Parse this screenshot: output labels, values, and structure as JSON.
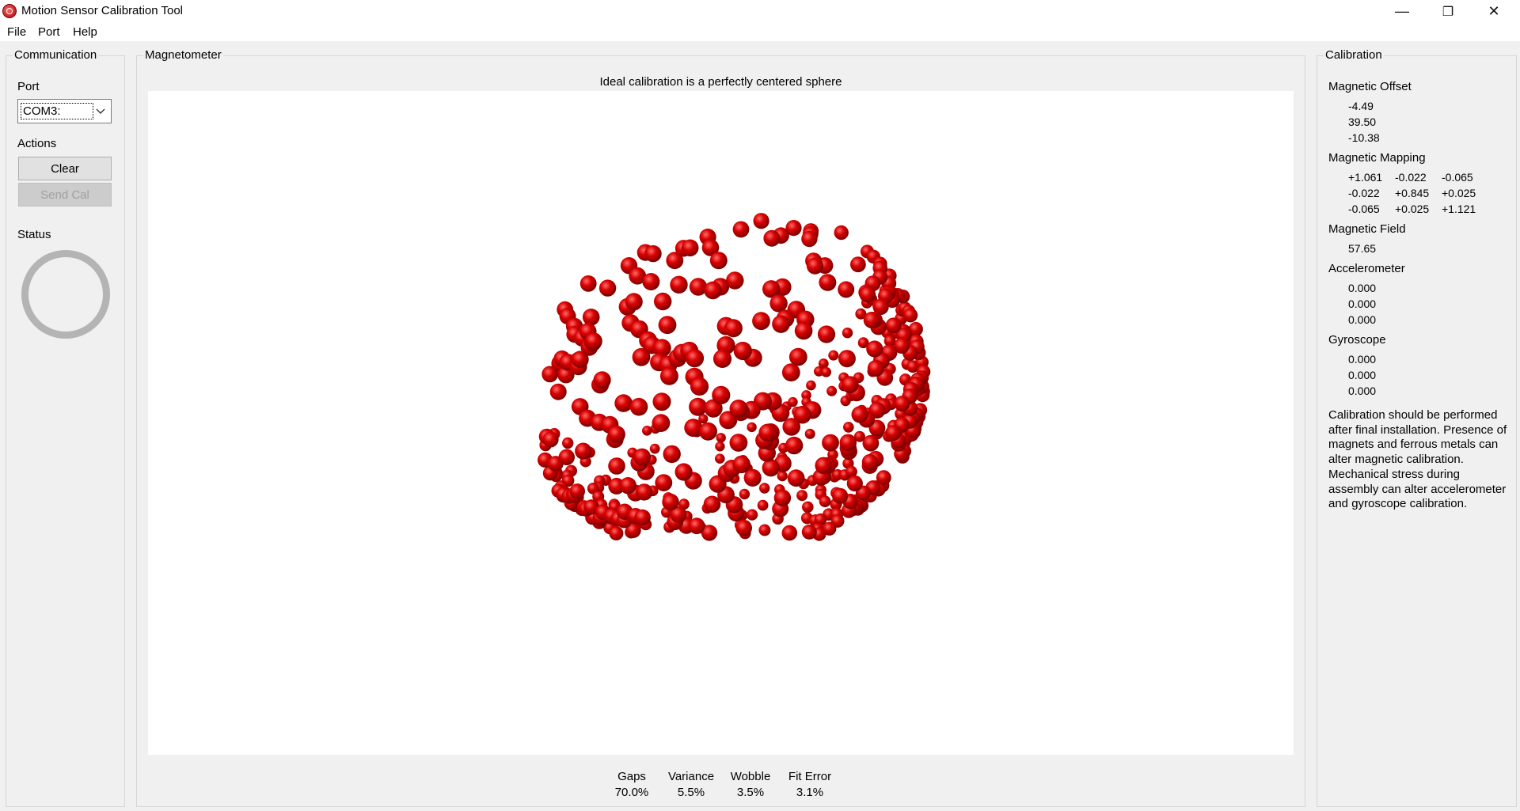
{
  "window": {
    "title": "Motion Sensor Calibration Tool"
  },
  "titlebar_buttons": {
    "minimize": "—",
    "restore": "❐",
    "close": "✕"
  },
  "menu": [
    "File",
    "Port",
    "Help"
  ],
  "communication": {
    "title": "Communication",
    "port_label": "Port",
    "port_value": "COM3:",
    "actions_label": "Actions",
    "clear_label": "Clear",
    "send_cal_label": "Send Cal",
    "status_label": "Status"
  },
  "magnetometer": {
    "title": "Magnetometer",
    "subtitle": "Ideal calibration is a perfectly centered sphere",
    "stats": [
      {
        "name": "Gaps",
        "value": "70.0%"
      },
      {
        "name": "Variance",
        "value": "5.5%"
      },
      {
        "name": "Wobble",
        "value": "3.5%"
      },
      {
        "name": "Fit Error",
        "value": "3.1%"
      }
    ],
    "point_color": "#cc0000"
  },
  "calibration": {
    "title": "Calibration",
    "offset_label": "Magnetic Offset",
    "offset": [
      "-4.49",
      "39.50",
      "-10.38"
    ],
    "mapping_label": "Magnetic Mapping",
    "mapping": [
      [
        "+1.061",
        "-0.022",
        "-0.065"
      ],
      [
        "-0.022",
        "+0.845",
        "+0.025"
      ],
      [
        "-0.065",
        "+0.025",
        "+1.121"
      ]
    ],
    "field_label": "Magnetic Field",
    "field": "57.65",
    "accel_label": "Accelerometer",
    "accel": [
      "0.000",
      "0.000",
      "0.000"
    ],
    "gyro_label": "Gyroscope",
    "gyro": [
      "0.000",
      "0.000",
      "0.000"
    ],
    "note": "Calibration should be performed after final installation.  Presence of magnets and ferrous metals can alter magnetic calibration. Mechanical stress during assembly can alter accelerometer and gyroscope calibration."
  }
}
